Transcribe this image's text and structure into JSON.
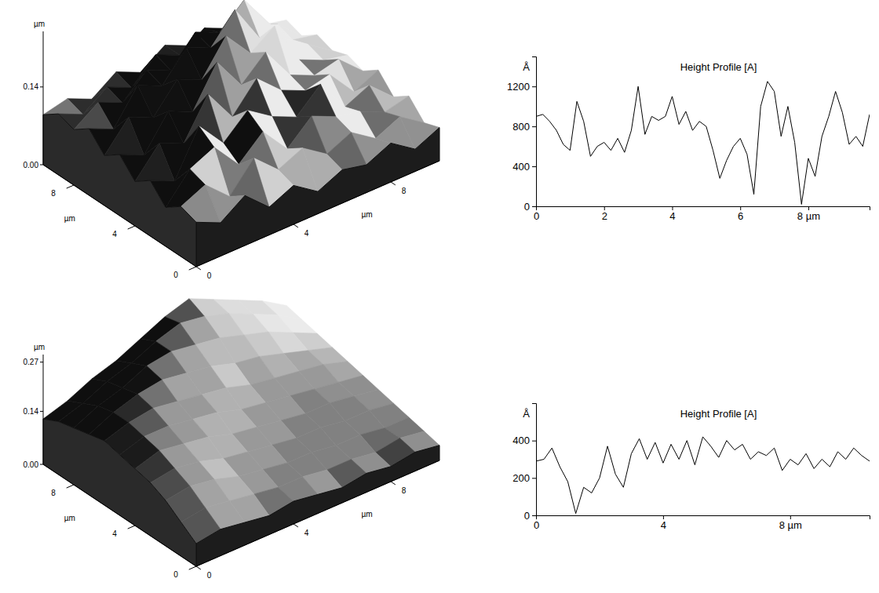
{
  "chart_data": [
    {
      "type": "surface",
      "xlabel": "µm",
      "ylabel": "µm",
      "zlabel": "µm",
      "xlim": [
        0,
        10
      ],
      "ylim": [
        0,
        10
      ],
      "zlim": [
        0,
        0.24
      ],
      "xticks": [
        0,
        4,
        8
      ],
      "yticks": [
        0,
        4,
        8
      ],
      "zticks": [
        {
          "value": 0,
          "label": "0.00"
        },
        0.14
      ],
      "x": [
        0,
        1,
        2,
        3,
        4,
        5,
        6,
        7,
        8,
        9,
        10
      ],
      "y": [
        0,
        1,
        2,
        3,
        4,
        5,
        6,
        7,
        8,
        9,
        10
      ],
      "z": [
        [
          0.08,
          0.06,
          0.09,
          0.05,
          0.07,
          0.04,
          0.06,
          0.05,
          0.07,
          0.04,
          0.06
        ],
        [
          0.09,
          0.11,
          0.07,
          0.12,
          0.08,
          0.1,
          0.07,
          0.09,
          0.06,
          0.08,
          0.05
        ],
        [
          0.07,
          0.12,
          0.14,
          0.09,
          0.13,
          0.08,
          0.12,
          0.1,
          0.09,
          0.07,
          0.08
        ],
        [
          0.1,
          0.08,
          0.16,
          0.11,
          0.15,
          0.12,
          0.1,
          0.14,
          0.08,
          0.1,
          0.06
        ],
        [
          0.08,
          0.13,
          0.11,
          0.18,
          0.12,
          0.17,
          0.13,
          0.11,
          0.12,
          0.07,
          0.09
        ],
        [
          0.11,
          0.09,
          0.15,
          0.13,
          0.2,
          0.14,
          0.18,
          0.12,
          0.1,
          0.11,
          0.07
        ],
        [
          0.09,
          0.14,
          0.12,
          0.17,
          0.15,
          0.21,
          0.16,
          0.19,
          0.11,
          0.09,
          0.08
        ],
        [
          0.12,
          0.1,
          0.16,
          0.14,
          0.19,
          0.17,
          0.22,
          0.15,
          0.13,
          0.1,
          0.07
        ],
        [
          0.1,
          0.13,
          0.11,
          0.15,
          0.13,
          0.18,
          0.16,
          0.2,
          0.14,
          0.09,
          0.08
        ],
        [
          0.11,
          0.09,
          0.12,
          0.1,
          0.14,
          0.12,
          0.15,
          0.13,
          0.12,
          0.1,
          0.06
        ],
        [
          0.09,
          0.1,
          0.08,
          0.11,
          0.09,
          0.12,
          0.1,
          0.11,
          0.09,
          0.08,
          0.07
        ]
      ]
    },
    {
      "type": "line",
      "title": "Height Profile [A]",
      "ylabel": "Å",
      "xlim": [
        0,
        9.8
      ],
      "ylim": [
        0,
        1500
      ],
      "xticks": [
        0,
        2,
        4,
        6,
        {
          "value": 8,
          "label": "8 µm"
        }
      ],
      "yticks": [
        0,
        400,
        800,
        1200
      ],
      "x": [
        0,
        0.2,
        0.4,
        0.6,
        0.8,
        1.0,
        1.2,
        1.4,
        1.6,
        1.8,
        2.0,
        2.2,
        2.4,
        2.6,
        2.8,
        3.0,
        3.2,
        3.4,
        3.6,
        3.8,
        4.0,
        4.2,
        4.4,
        4.6,
        4.8,
        5.0,
        5.2,
        5.4,
        5.6,
        5.8,
        6.0,
        6.2,
        6.4,
        6.6,
        6.8,
        7.0,
        7.2,
        7.4,
        7.6,
        7.8,
        8.0,
        8.2,
        8.4,
        8.6,
        8.8,
        9.0,
        9.2,
        9.4,
        9.6,
        9.8
      ],
      "values": [
        900,
        920,
        850,
        760,
        620,
        560,
        1050,
        850,
        500,
        600,
        640,
        560,
        680,
        540,
        760,
        1200,
        720,
        900,
        860,
        900,
        1100,
        820,
        950,
        760,
        850,
        800,
        560,
        280,
        460,
        600,
        680,
        520,
        120,
        1000,
        1250,
        1150,
        700,
        1000,
        640,
        20,
        480,
        300,
        700,
        900,
        1150,
        940,
        620,
        700,
        600,
        920
      ]
    },
    {
      "type": "surface",
      "xlabel": "µm",
      "ylabel": "µm",
      "zlabel": "µm",
      "xlim": [
        0,
        10
      ],
      "ylim": [
        0,
        10
      ],
      "zlim": [
        0,
        0.29
      ],
      "xticks": [
        0,
        4,
        8
      ],
      "yticks": [
        0,
        4,
        8
      ],
      "zticks": [
        {
          "value": 0,
          "label": "0.00"
        },
        0.14,
        0.27
      ],
      "x": [
        0,
        1,
        2,
        3,
        4,
        5,
        6,
        7,
        8,
        9,
        10
      ],
      "y": [
        0,
        1,
        2,
        3,
        4,
        5,
        6,
        7,
        8,
        9,
        10
      ],
      "z": [
        [
          0.06,
          0.07,
          0.06,
          0.05,
          0.06,
          0.05,
          0.04,
          0.05,
          0.04,
          0.05,
          0.04
        ],
        [
          0.09,
          0.1,
          0.09,
          0.08,
          0.07,
          0.07,
          0.06,
          0.06,
          0.05,
          0.06,
          0.05
        ],
        [
          0.12,
          0.13,
          0.12,
          0.1,
          0.09,
          0.08,
          0.08,
          0.07,
          0.07,
          0.06,
          0.06
        ],
        [
          0.14,
          0.15,
          0.14,
          0.12,
          0.11,
          0.1,
          0.09,
          0.09,
          0.08,
          0.08,
          0.07
        ],
        [
          0.15,
          0.17,
          0.16,
          0.15,
          0.13,
          0.12,
          0.11,
          0.1,
          0.1,
          0.09,
          0.08
        ],
        [
          0.16,
          0.18,
          0.18,
          0.17,
          0.16,
          0.14,
          0.13,
          0.12,
          0.11,
          0.1,
          0.09
        ],
        [
          0.17,
          0.19,
          0.2,
          0.19,
          0.18,
          0.17,
          0.15,
          0.14,
          0.13,
          0.12,
          0.1
        ],
        [
          0.16,
          0.19,
          0.21,
          0.22,
          0.21,
          0.2,
          0.18,
          0.17,
          0.15,
          0.13,
          0.11
        ],
        [
          0.15,
          0.18,
          0.2,
          0.23,
          0.24,
          0.23,
          0.22,
          0.2,
          0.18,
          0.15,
          0.12
        ],
        [
          0.14,
          0.16,
          0.19,
          0.21,
          0.24,
          0.26,
          0.25,
          0.23,
          0.2,
          0.17,
          0.13
        ],
        [
          0.12,
          0.14,
          0.17,
          0.19,
          0.22,
          0.25,
          0.27,
          0.24,
          0.21,
          0.18,
          0.14
        ]
      ]
    },
    {
      "type": "line",
      "title": "Height Profile [A]",
      "ylabel": "Å",
      "xlim": [
        0,
        10.5
      ],
      "ylim": [
        0,
        600
      ],
      "xticks": [
        0,
        4,
        {
          "value": 8,
          "label": "8 µm"
        }
      ],
      "yticks": [
        0,
        200,
        400
      ],
      "x": [
        0,
        0.25,
        0.5,
        0.75,
        1.0,
        1.25,
        1.5,
        1.75,
        2.0,
        2.25,
        2.5,
        2.75,
        3.0,
        3.25,
        3.5,
        3.75,
        4.0,
        4.25,
        4.5,
        4.75,
        5.0,
        5.25,
        5.5,
        5.75,
        6.0,
        6.25,
        6.5,
        6.75,
        7.0,
        7.25,
        7.5,
        7.75,
        8.0,
        8.25,
        8.5,
        8.75,
        9.0,
        9.25,
        9.5,
        9.75,
        10.0,
        10.25,
        10.5
      ],
      "values": [
        290,
        300,
        360,
        260,
        180,
        10,
        150,
        120,
        200,
        370,
        220,
        150,
        330,
        410,
        300,
        390,
        280,
        380,
        300,
        400,
        270,
        420,
        370,
        310,
        400,
        350,
        380,
        300,
        340,
        320,
        360,
        240,
        300,
        270,
        330,
        250,
        300,
        260,
        340,
        300,
        360,
        320,
        290
      ]
    }
  ]
}
